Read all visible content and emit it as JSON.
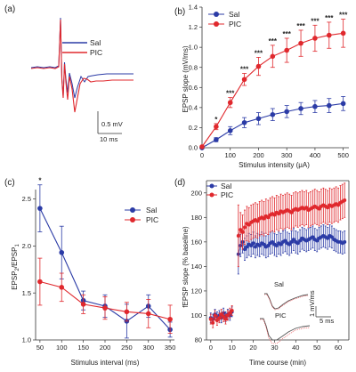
{
  "colors": {
    "sal": "#2b3ba6",
    "pic": "#e0282d",
    "axis": "#333333",
    "inset_trace": "#555555"
  },
  "panels": {
    "a": {
      "label": "(a)",
      "legend": [
        "Sal",
        "PIC"
      ],
      "scalebar_y": "0.5 mV",
      "scalebar_x": "10 ms"
    },
    "d_inset": {
      "sal_label": "Sal",
      "pic_label": "PIC",
      "scalebar_y": "1 mV/ms",
      "scalebar_x": "5 ms"
    }
  },
  "chart_data": [
    {
      "id": "b",
      "type": "line",
      "panel_label": "(b)",
      "xlabel": "Stimulus intensity (μA)",
      "ylabel": "EPSP slope (mV/ms)",
      "xlim": [
        0,
        520
      ],
      "ylim": [
        0,
        1.4
      ],
      "xticks": [
        0,
        100,
        200,
        300,
        400,
        500
      ],
      "yticks": [
        0.0,
        0.2,
        0.4,
        0.6,
        0.8,
        1.0,
        1.2,
        1.4
      ],
      "ytick_labels": [
        "0.0",
        "0.2",
        "0.4",
        "0.6",
        "0.8",
        "1.0",
        "1.2",
        "1.4"
      ],
      "legend_position": "top-left",
      "x": [
        0,
        50,
        100,
        150,
        200,
        250,
        300,
        350,
        400,
        450,
        500
      ],
      "series": [
        {
          "name": "Sal",
          "values": [
            0.0,
            0.08,
            0.17,
            0.25,
            0.29,
            0.33,
            0.36,
            0.39,
            0.41,
            0.42,
            0.44
          ],
          "err": [
            0.01,
            0.02,
            0.04,
            0.05,
            0.06,
            0.06,
            0.06,
            0.06,
            0.06,
            0.07,
            0.07
          ]
        },
        {
          "name": "PIC",
          "values": [
            0.01,
            0.21,
            0.45,
            0.68,
            0.81,
            0.91,
            0.97,
            1.04,
            1.09,
            1.12,
            1.14
          ],
          "err": [
            0.01,
            0.03,
            0.05,
            0.06,
            0.09,
            0.11,
            0.12,
            0.13,
            0.13,
            0.13,
            0.14
          ]
        }
      ],
      "annotations": [
        {
          "x": 50,
          "text": "*"
        },
        {
          "x": 100,
          "text": "***"
        },
        {
          "x": 150,
          "text": "***"
        },
        {
          "x": 200,
          "text": "***"
        },
        {
          "x": 250,
          "text": "***"
        },
        {
          "x": 300,
          "text": "***"
        },
        {
          "x": 350,
          "text": "***"
        },
        {
          "x": 400,
          "text": "***"
        },
        {
          "x": 450,
          "text": "***"
        },
        {
          "x": 500,
          "text": "***"
        }
      ]
    },
    {
      "id": "c",
      "type": "line",
      "panel_label": "(c)",
      "xlabel": "Stimulus interval (ms)",
      "ylabel": "EPSP2/EPSP1",
      "xlim": [
        40,
        360
      ],
      "ylim": [
        1.0,
        2.6
      ],
      "xticks": [
        50,
        100,
        150,
        200,
        250,
        300,
        350
      ],
      "yticks": [
        1.0,
        1.5,
        2.0,
        2.5
      ],
      "ytick_labels": [
        "1.0",
        "1.5",
        "2.0",
        "2.5"
      ],
      "legend_position": "top-right",
      "x": [
        50,
        100,
        150,
        200,
        250,
        300,
        350
      ],
      "series": [
        {
          "name": "Sal",
          "values": [
            2.4,
            1.93,
            1.42,
            1.36,
            1.2,
            1.36,
            1.11
          ],
          "err": [
            0.25,
            0.28,
            0.1,
            0.12,
            0.18,
            0.12,
            0.08
          ]
        },
        {
          "name": "PIC",
          "values": [
            1.62,
            1.56,
            1.38,
            1.34,
            1.3,
            1.28,
            1.22
          ],
          "err": [
            0.25,
            0.15,
            0.1,
            0.12,
            0.1,
            0.15,
            0.15
          ]
        }
      ],
      "annotations": [
        {
          "x": 50,
          "text": "*"
        }
      ]
    },
    {
      "id": "d",
      "type": "scatter",
      "panel_label": "(d)",
      "xlabel": "Time course (min)",
      "ylabel": "fEPSP slope (% baseline)",
      "xlim": [
        -2,
        65
      ],
      "ylim": [
        80,
        210
      ],
      "xticks": [
        0,
        10,
        20,
        30,
        40,
        50,
        60
      ],
      "yticks": [
        80,
        100,
        120,
        140,
        160,
        180,
        200
      ],
      "ytick_labels": [
        "80",
        "100",
        "120",
        "140",
        "160",
        "180",
        "200"
      ],
      "legend_position": "top-left",
      "baseline_x": [
        0,
        1,
        2,
        3,
        4,
        5,
        6,
        7,
        8,
        9,
        10
      ],
      "post_x_start": 13,
      "post_x_end": 63,
      "series": [
        {
          "name": "Sal",
          "baseline_values": [
            98,
            97,
            101,
            99,
            100,
            98,
            102,
            99,
            101,
            100,
            103
          ],
          "post_values": [
            150,
            157,
            160,
            154,
            156,
            158,
            157,
            159,
            156,
            158,
            157,
            159,
            158,
            156,
            157,
            159,
            160,
            158,
            157,
            159,
            158,
            160,
            161,
            159,
            158,
            160,
            162,
            160,
            159,
            161,
            163,
            162,
            161,
            162,
            163,
            164,
            162,
            161,
            163,
            164,
            165,
            164,
            163,
            165,
            164,
            162,
            161,
            160,
            160,
            159,
            160
          ],
          "post_err": 9
        },
        {
          "name": "PIC",
          "baseline_values": [
            97,
            94,
            100,
            96,
            98,
            101,
            99,
            97,
            100,
            102,
            104
          ],
          "post_values": [
            165,
            170,
            168,
            172,
            175,
            174,
            176,
            177,
            178,
            177,
            179,
            180,
            179,
            181,
            180,
            182,
            183,
            182,
            184,
            183,
            185,
            184,
            185,
            186,
            185,
            184,
            186,
            187,
            186,
            187,
            188,
            187,
            188,
            186,
            187,
            188,
            189,
            188,
            187,
            189,
            190,
            189,
            188,
            190,
            189,
            190,
            191,
            190,
            192,
            193,
            194
          ],
          "post_err": 14
        }
      ]
    }
  ]
}
